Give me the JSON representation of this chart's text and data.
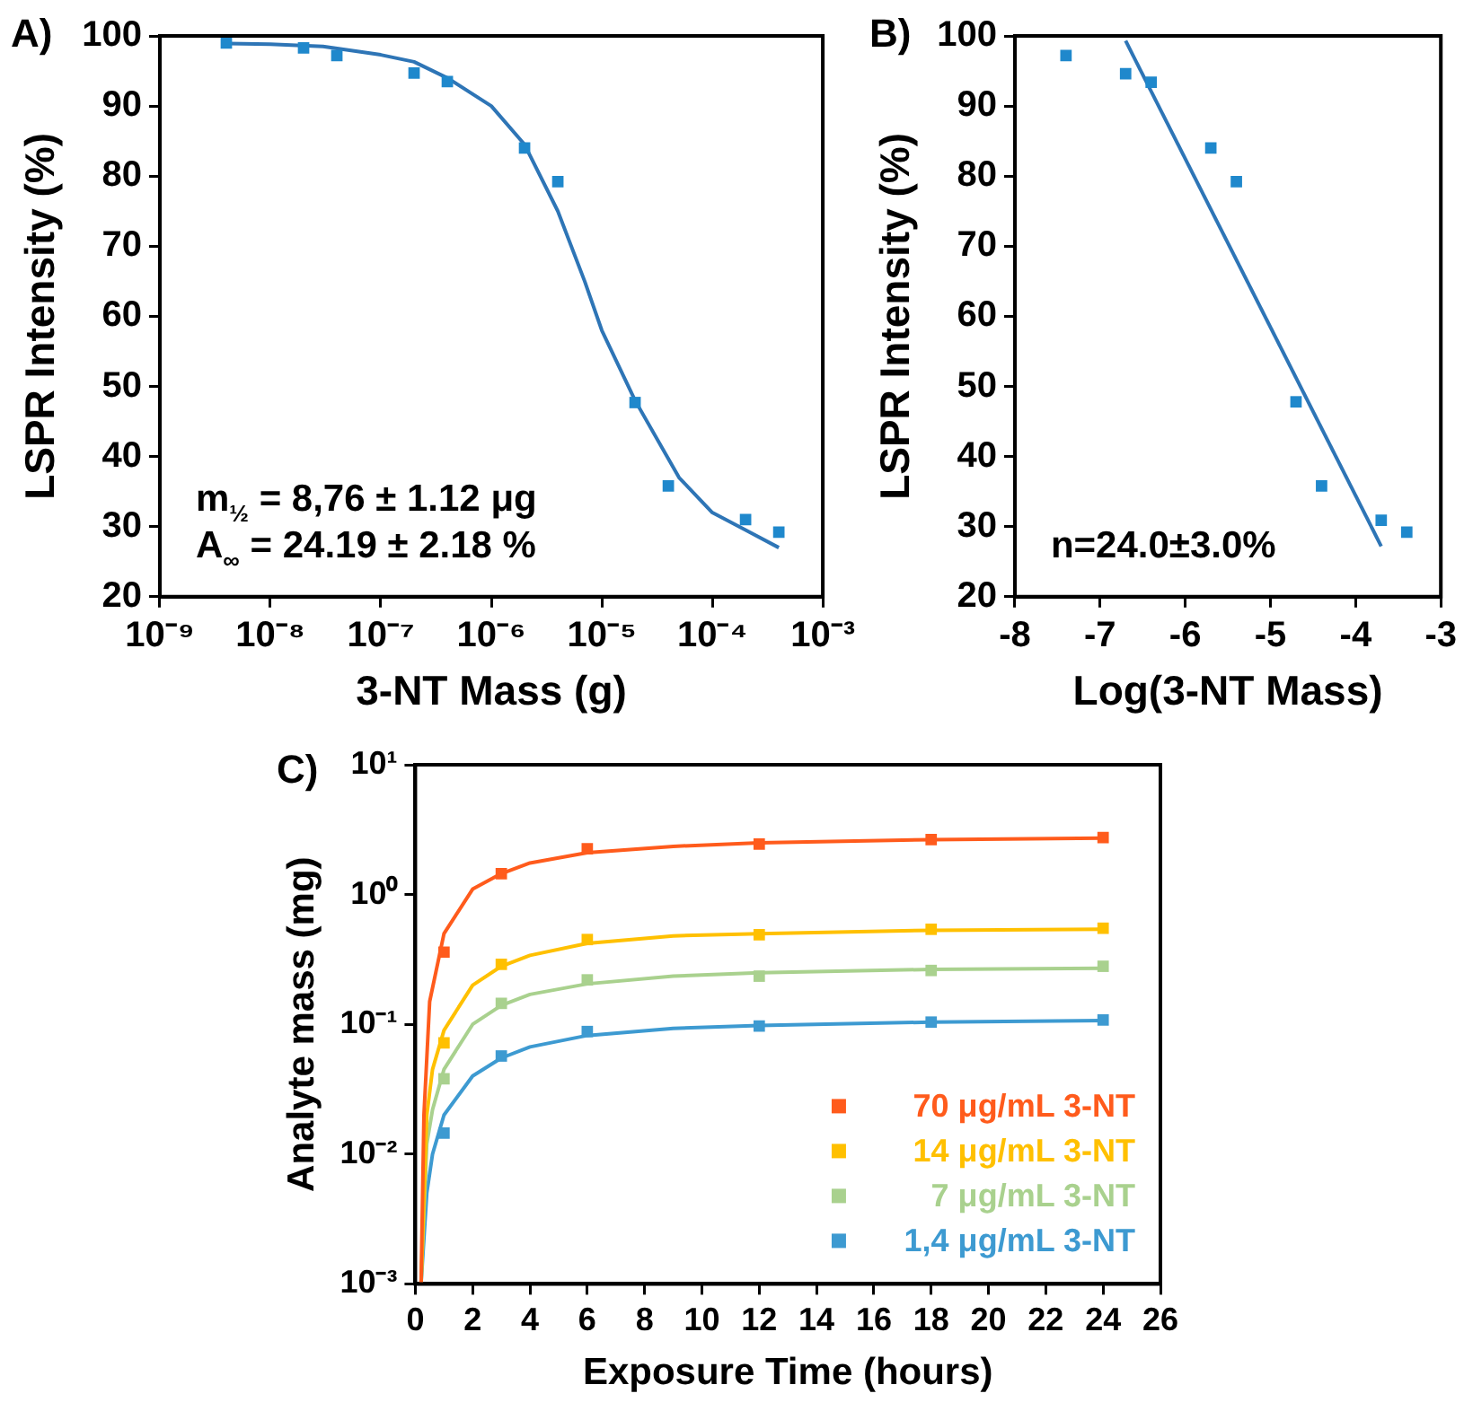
{
  "chart_data": [
    {
      "type": "scatter",
      "title": "A)",
      "xlabel": "3-NT Mass (g)",
      "ylabel": "LSPR Intensity (%)",
      "log": "x",
      "marker": "square",
      "grid": false,
      "xlim": [
        1e-09,
        0.001
      ],
      "xticks": [
        {
          "value": 1e-09,
          "label": "10⁻⁹"
        },
        {
          "value": 1e-08,
          "label": "10⁻⁸"
        },
        {
          "value": 1e-07,
          "label": "10⁻⁷"
        },
        {
          "value": 1e-06,
          "label": "10⁻⁶"
        },
        {
          "value": 1e-05,
          "label": "10⁻⁵"
        },
        {
          "value": 0.0001,
          "label": "10⁻⁴"
        },
        {
          "value": 0.001,
          "label": "10⁻³"
        }
      ],
      "ylim": [
        20,
        100
      ],
      "yticks": [
        20,
        30,
        40,
        50,
        60,
        70,
        80,
        90,
        100
      ],
      "annotations": [
        "m$_{½}$ = 8,76 ± 1.12 μg",
        "A$_{∞}$ = 24.19 ± 2.18 %"
      ],
      "series": [
        {
          "color": "#1f88cc",
          "x": [
            4e-09,
            2e-08,
            4e-08,
            2e-07,
            4e-07,
            2e-06,
            4e-06,
            2e-05,
            4e-05,
            0.0002,
            0.0004
          ],
          "values": [
            99,
            98.3,
            97.2,
            94.7,
            93.5,
            84,
            79.2,
            47.7,
            35.8,
            31,
            29.2
          ]
        },
        {
          "type": "line",
          "marker": "none",
          "color": "#2e75b6",
          "x": [
            4e-09,
            1e-08,
            3e-08,
            1e-07,
            2e-07,
            4e-07,
            1e-06,
            2e-06,
            4e-06,
            7e-06,
            1e-05,
            2e-05,
            5e-05,
            0.0001,
            0.0002,
            0.0004
          ],
          "values": [
            98.9,
            98.8,
            98.5,
            97.3,
            96.3,
            94,
            90,
            84.5,
            75,
            65,
            58,
            48,
            37,
            32,
            29.5,
            27
          ]
        }
      ]
    },
    {
      "type": "scatter",
      "title": "B)",
      "xlabel": "Log(3-NT Mass)",
      "ylabel": "LSPR Intensity (%)",
      "marker": "square",
      "grid": false,
      "xlim": [
        -8,
        -3
      ],
      "xticks": [
        -8,
        -7,
        -6,
        -5,
        -4,
        -3
      ],
      "ylim": [
        20,
        100
      ],
      "yticks": [
        20,
        30,
        40,
        50,
        60,
        70,
        80,
        90,
        100
      ],
      "annotations": [
        "n=24.0±3.0%"
      ],
      "series": [
        {
          "color": "#1f88cc",
          "x": [
            -7.4,
            -6.7,
            -6.4,
            -5.7,
            -5.4,
            -4.7,
            -4.4,
            -3.7,
            -3.4
          ],
          "values": [
            97.2,
            94.6,
            93.4,
            84,
            79.2,
            47.8,
            35.8,
            30.9,
            29.2
          ]
        },
        {
          "type": "line",
          "marker": "none",
          "color": "#2e75b6",
          "x": [
            -6.7,
            -3.7
          ],
          "values": [
            99.3,
            27.2
          ]
        }
      ]
    },
    {
      "type": "scatter",
      "title": "C)",
      "xlabel": "Exposure Time (hours)",
      "ylabel": "Analyte mass (mg)",
      "log": "y",
      "marker": "square",
      "grid": false,
      "legend": "bottom right",
      "xlim": [
        0,
        26
      ],
      "xticks": [
        0,
        2,
        4,
        6,
        8,
        10,
        12,
        14,
        16,
        18,
        20,
        22,
        24,
        26
      ],
      "ylim": [
        0.001,
        10
      ],
      "yticks": [
        {
          "value": 0.001,
          "label": "10⁻³"
        },
        {
          "value": 0.01,
          "label": "10⁻²"
        },
        {
          "value": 0.1,
          "label": "10⁻¹"
        },
        {
          "value": 1,
          "label": "10⁰"
        },
        {
          "value": 10,
          "label": "10¹"
        }
      ],
      "series": [
        {
          "name": "70 μg/mL 3-NT",
          "color": "#ff5b1c",
          "x": [
            1,
            3,
            6,
            12,
            18,
            24
          ],
          "values": [
            0.36,
            1.45,
            2.25,
            2.45,
            2.65,
            2.75
          ]
        },
        {
          "name": "14 μg/mL 3-NT",
          "color": "#ffc000",
          "x": [
            1,
            3,
            6,
            12,
            18,
            24
          ],
          "values": [
            0.072,
            0.29,
            0.45,
            0.49,
            0.54,
            0.55
          ]
        },
        {
          "name": "7 μg/mL 3-NT",
          "color": "#a9d18e",
          "x": [
            1,
            3,
            6,
            12,
            18,
            24
          ],
          "values": [
            0.038,
            0.145,
            0.22,
            0.235,
            0.26,
            0.28
          ]
        },
        {
          "name": "1,4 μg/mL 3-NT",
          "color": "#3d9ad1",
          "x": [
            1,
            3,
            6,
            12,
            18,
            24
          ],
          "values": [
            0.0145,
            0.057,
            0.088,
            0.097,
            0.104,
            0.108
          ]
        },
        {
          "type": "line",
          "marker": "none",
          "color": "#ff5b1c",
          "x": [
            0.2,
            0.3,
            0.5,
            1,
            2,
            3,
            4,
            6,
            9,
            12,
            18,
            24
          ],
          "values": [
            0.001,
            0.02,
            0.15,
            0.5,
            1.1,
            1.45,
            1.75,
            2.1,
            2.35,
            2.5,
            2.65,
            2.72
          ]
        },
        {
          "type": "line",
          "marker": "none",
          "color": "#ffc000",
          "x": [
            0.2,
            0.4,
            0.6,
            1,
            2,
            3,
            4,
            6,
            9,
            12,
            18,
            24
          ],
          "values": [
            0.001,
            0.02,
            0.045,
            0.09,
            0.2,
            0.28,
            0.34,
            0.42,
            0.48,
            0.5,
            0.53,
            0.54
          ]
        },
        {
          "type": "line",
          "marker": "none",
          "color": "#a9d18e",
          "x": [
            0.2,
            0.4,
            0.6,
            1,
            2,
            3,
            4,
            6,
            9,
            12,
            18,
            24
          ],
          "values": [
            0.001,
            0.012,
            0.022,
            0.045,
            0.1,
            0.14,
            0.17,
            0.205,
            0.235,
            0.25,
            0.265,
            0.27
          ]
        },
        {
          "type": "line",
          "marker": "none",
          "color": "#3d9ad1",
          "x": [
            0.2,
            0.4,
            0.6,
            1,
            2,
            3,
            4,
            6,
            9,
            12,
            18,
            24
          ],
          "values": [
            0.001,
            0.005,
            0.01,
            0.02,
            0.04,
            0.055,
            0.067,
            0.082,
            0.093,
            0.098,
            0.104,
            0.107
          ]
        }
      ]
    }
  ]
}
